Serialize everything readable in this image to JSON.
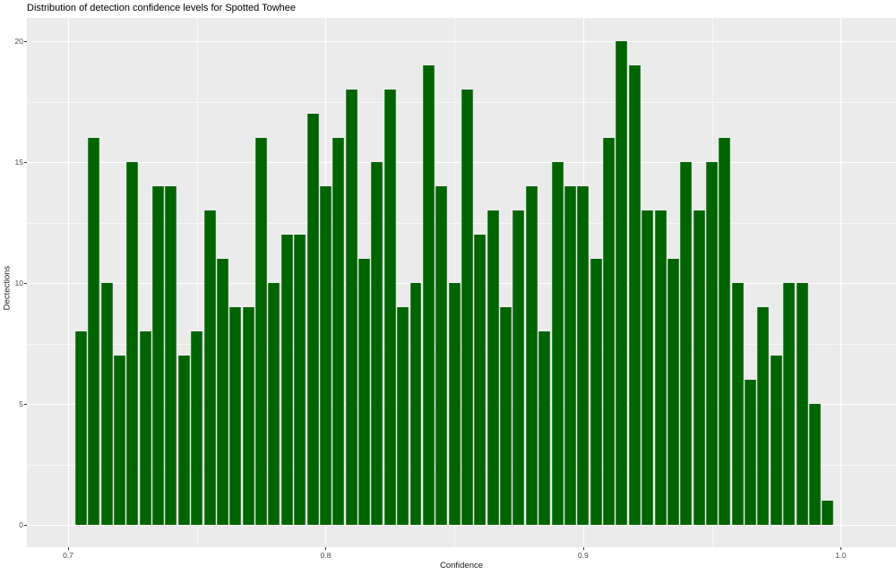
{
  "title": "Distribution of detection confidence levels for Spotted Towhee",
  "chart_data": {
    "type": "bar",
    "subtype": "histogram",
    "title": "Distribution of detection confidence levels for Spotted Towhee",
    "xlabel": "Confidence",
    "ylabel": "Dectections",
    "bar_color": "#006400",
    "panel_bg": "#ebebeb",
    "grid_color": "#ffffff",
    "legend": "none",
    "grid": "on",
    "xlim": [
      0.684,
      1.021
    ],
    "ylim": [
      0,
      20
    ],
    "x_ticks": [
      0.7,
      0.8,
      0.9,
      1.0
    ],
    "x_tick_labels": [
      "0.7",
      "0.8",
      "0.9",
      "1.0"
    ],
    "x_minor_ticks": [
      0.75,
      0.85,
      0.95
    ],
    "y_ticks": [
      0,
      5,
      10,
      15,
      20
    ],
    "y_tick_labels": [
      "0",
      "5",
      "10",
      "15",
      "20"
    ],
    "y_minor_ticks": [
      2.5,
      7.5,
      12.5,
      17.5
    ],
    "bin_width": 0.005,
    "bin_centers": [
      0.705,
      0.71,
      0.715,
      0.72,
      0.725,
      0.73,
      0.735,
      0.74,
      0.745,
      0.75,
      0.755,
      0.76,
      0.765,
      0.77,
      0.775,
      0.78,
      0.785,
      0.79,
      0.795,
      0.8,
      0.805,
      0.81,
      0.815,
      0.82,
      0.825,
      0.83,
      0.835,
      0.84,
      0.845,
      0.85,
      0.855,
      0.86,
      0.865,
      0.87,
      0.875,
      0.88,
      0.885,
      0.89,
      0.895,
      0.9,
      0.905,
      0.91,
      0.915,
      0.92,
      0.925,
      0.93,
      0.935,
      0.94,
      0.945,
      0.95,
      0.955,
      0.96,
      0.965,
      0.97,
      0.975,
      0.98,
      0.985,
      0.99,
      0.995
    ],
    "values": [
      8,
      16,
      10,
      7,
      15,
      8,
      14,
      14,
      7,
      8,
      13,
      11,
      9,
      9,
      16,
      10,
      12,
      12,
      17,
      14,
      16,
      18,
      11,
      15,
      18,
      9,
      10,
      19,
      14,
      10,
      18,
      12,
      13,
      9,
      13,
      14,
      8,
      15,
      14,
      14,
      11,
      16,
      20,
      19,
      13,
      13,
      11,
      15,
      13,
      15,
      16,
      10,
      6,
      9,
      7,
      10,
      10,
      5,
      1
    ]
  }
}
